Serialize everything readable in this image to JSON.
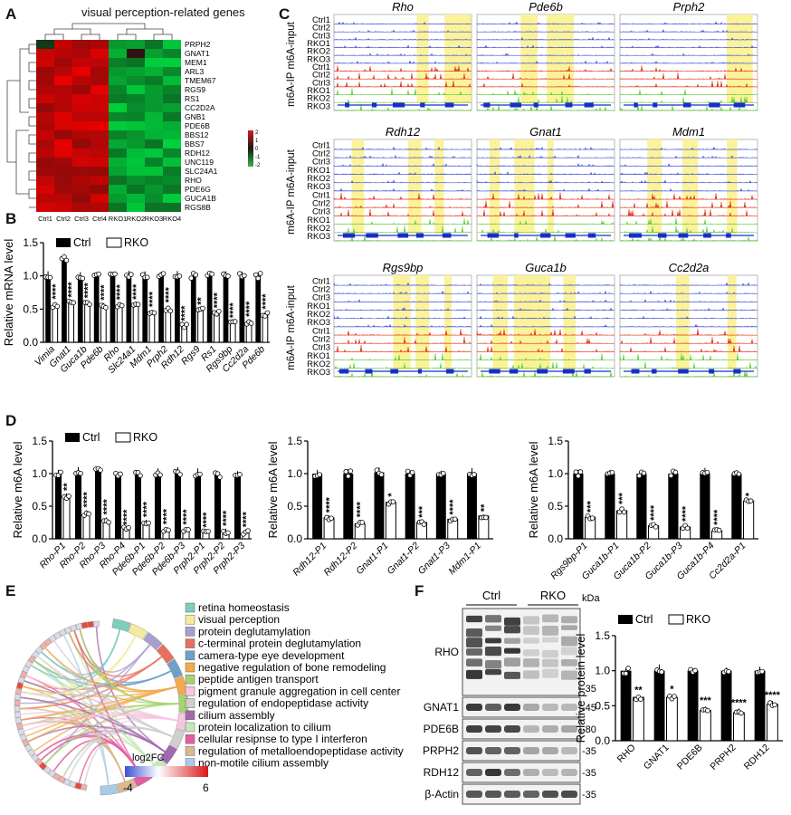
{
  "panels": {
    "A": {
      "label": "A",
      "title": "visual perception-related genes",
      "genes": [
        "PRPH2",
        "GNAT1",
        "MEM1",
        "ARL3",
        "TMEM67",
        "RGS9",
        "RS1",
        "CC2D2A",
        "GNB1",
        "PDE6B",
        "BBS12",
        "BBS7",
        "RDH12",
        "UNC119",
        "SLC24A1",
        "RHO",
        "PDE6G",
        "GUCA1B",
        "RGS8B"
      ],
      "samples": [
        "Ctrl1",
        "Ctrl2",
        "Ctrl3",
        "Ctrl4",
        "RKO1",
        "RKO2",
        "RKO3",
        "RKO4"
      ],
      "scale_ticks": [
        "2",
        "1",
        "0",
        "-1",
        "-2"
      ],
      "colors": {
        "high": "#d7191c",
        "low": "#39b54a",
        "mid": "#1a1a1a"
      }
    },
    "B": {
      "label": "B",
      "legend": [
        "Ctrl",
        "RKO"
      ],
      "ylabel": "Relative mRNA level",
      "yticks": [
        "0.0",
        "0.5",
        "1.0",
        "1.5"
      ],
      "genes": [
        "Vimia",
        "Gnat1",
        "Guca1b",
        "Pde6b",
        "Rho",
        "Slc24a1",
        "Mdm1",
        "Prph2",
        "Rdh12",
        "Rgs9",
        "Rs1",
        "Rgs9bp",
        "Cc2d2a",
        "Pde6b"
      ],
      "sig": [
        "****",
        "****",
        "****",
        "****",
        "****",
        "****",
        "****",
        "****",
        "****",
        "**",
        "****",
        "****",
        "****",
        "****"
      ]
    },
    "C": {
      "label": "C",
      "ylabel": "m6A-IP m6A-input",
      "tracks": [
        "Ctrl1",
        "Ctrl2",
        "Ctrl3",
        "RKO1",
        "RKO2",
        "RKO3",
        "Ctrl1",
        "Ctrl2",
        "Ctrl3",
        "RKO1",
        "RKO2",
        "RKO3"
      ],
      "rows": [
        [
          "Rho",
          "Pde6b",
          "Prph2"
        ],
        [
          "Rdh12",
          "Gnat1",
          "Mdm1"
        ],
        [
          "Rgs9bp",
          "Guca1b",
          "Cc2d2a"
        ]
      ],
      "colors": {
        "input": "#3b4fd6",
        "ctrl_ip": "#e0331a",
        "rko_ip": "#5fd13a",
        "highlight": "#fbf29a"
      }
    },
    "D": {
      "label": "D",
      "legend": [
        "Ctrl",
        "RKO"
      ],
      "ylabel": "Relative m6A level",
      "yticks": [
        "0.0",
        "0.5",
        "1.0",
        "1.5"
      ],
      "plots": [
        {
          "sites": [
            "Rho-P1",
            "Rho-P2",
            "Rho-P3",
            "Rho-P4",
            "Pde6b-P1",
            "Pde6b-P2",
            "Pde6b-P3",
            "Prph2-P1",
            "Prph2-P2",
            "Prph2-P3"
          ],
          "sig": [
            "**",
            "****",
            "****",
            "****",
            "****",
            "****",
            "****",
            "****",
            "****",
            "****"
          ]
        },
        {
          "sites": [
            "Rdh12-P1",
            "Rdh12-P2",
            "Gnat1-P1",
            "Gnat1-P2",
            "Gnat1-P3",
            "Mdm1-P1"
          ],
          "sig": [
            "****",
            "****",
            "*",
            "***",
            "****",
            "**"
          ]
        },
        {
          "sites": [
            "Rgs9bp-P1",
            "Guca1b-P1",
            "Guca1b-P2",
            "Guca1b-P3",
            "Guca1b-P4",
            "Cc2d2a-P1"
          ],
          "sig": [
            "***",
            "***",
            "****",
            "****",
            "****",
            "*"
          ]
        }
      ]
    },
    "E": {
      "label": "E",
      "terms": [
        {
          "name": "retina homeostasis",
          "color": "#7fcdbb"
        },
        {
          "name": "visual perception",
          "color": "#f6eb9c"
        },
        {
          "name": "protein deglutamylation",
          "color": "#a99fcf"
        },
        {
          "name": "c-terminal protein deglutamylation",
          "color": "#e8705f"
        },
        {
          "name": "camera-type eye development",
          "color": "#6fa0c8"
        },
        {
          "name": "negative regulation of bone remodeling",
          "color": "#f4a94e"
        },
        {
          "name": "peptide antigen transport",
          "color": "#a7d36f"
        },
        {
          "name": "pigment granule aggregation in cell center",
          "color": "#f7c6de"
        },
        {
          "name": "regulation of endopeptidase activity",
          "color": "#cfcfcf"
        },
        {
          "name": "cilium assembly",
          "color": "#a268ad"
        },
        {
          "name": "protein localization to cilium",
          "color": "#c6e9b8"
        },
        {
          "name": "cellular resipnse to type I interferon",
          "color": "#e65ca0"
        },
        {
          "name": "regulation of metalloendopeptidase activity",
          "color": "#d9b98f"
        },
        {
          "name": "non-motile cilium assembly",
          "color": "#a9cbe6"
        }
      ],
      "scale_title": "log2FC",
      "scale_min": "-4",
      "scale_max": "6"
    },
    "F": {
      "label": "F",
      "groups": [
        "Ctrl",
        "RKO"
      ],
      "kda": "kDa",
      "blots": [
        {
          "name": "RHO",
          "mw": "-35"
        },
        {
          "name": "GNAT1",
          "mw": "-45"
        },
        {
          "name": "PDE6B",
          "mw": "-80"
        },
        {
          "name": "PRPH2",
          "mw": "-35"
        },
        {
          "name": "RDH12",
          "mw": "-35"
        },
        {
          "name": "β-Actin",
          "mw": "-35"
        }
      ],
      "legend": [
        "Ctrl",
        "RKO"
      ],
      "ylabel": "Relative protein level",
      "yticks": [
        "0.0",
        "0.5",
        "1.0",
        "1.5"
      ]
    }
  },
  "chart_data": [
    {
      "type": "bar",
      "panel": "B",
      "categories": [
        "Vimia",
        "Gnat1",
        "Guca1b",
        "Pde6b",
        "Rho",
        "Slc24a1",
        "Mdm1",
        "Prph2",
        "Rdh12",
        "Rgs9",
        "Rs1",
        "Rgs9bp",
        "Cc2d2a",
        "Pde6b"
      ],
      "series": [
        {
          "name": "Ctrl",
          "values": [
            1.0,
            1.25,
            1.0,
            1.0,
            1.0,
            1.0,
            1.0,
            1.0,
            1.0,
            1.0,
            1.0,
            1.0,
            1.0,
            1.0
          ]
        },
        {
          "name": "RKO",
          "values": [
            0.55,
            0.6,
            0.58,
            0.55,
            0.56,
            0.55,
            0.45,
            0.5,
            0.25,
            0.5,
            0.45,
            0.3,
            0.3,
            0.42
          ]
        }
      ],
      "ylabel": "Relative mRNA level",
      "ylim": [
        0,
        1.5
      ]
    },
    {
      "type": "bar",
      "panel": "D1",
      "categories": [
        "Rho-P1",
        "Rho-P2",
        "Rho-P3",
        "Rho-P4",
        "Pde6b-P1",
        "Pde6b-P2",
        "Pde6b-P3",
        "Prph2-P1",
        "Prph2-P2",
        "Prph2-P3"
      ],
      "series": [
        {
          "name": "Ctrl",
          "values": [
            1.0,
            1.02,
            1.05,
            0.98,
            0.98,
            1.0,
            1.02,
            1.0,
            0.98,
            1.0
          ]
        },
        {
          "name": "RKO",
          "values": [
            0.65,
            0.38,
            0.28,
            0.15,
            0.25,
            0.12,
            0.12,
            0.1,
            0.1,
            0.1
          ]
        }
      ],
      "ylabel": "Relative m6A level",
      "ylim": [
        0,
        1.5
      ]
    },
    {
      "type": "bar",
      "panel": "D2",
      "categories": [
        "Rdh12-P1",
        "Rdh12-P2",
        "Gnat1-P1",
        "Gnat1-P2",
        "Gnat1-P3",
        "Mdm1-P1"
      ],
      "series": [
        {
          "name": "Ctrl",
          "values": [
            1.0,
            1.0,
            1.02,
            1.0,
            1.0,
            1.0
          ]
        },
        {
          "name": "RKO",
          "values": [
            0.32,
            0.23,
            0.56,
            0.25,
            0.3,
            0.35
          ]
        }
      ],
      "ylabel": "Relative m6A level",
      "ylim": [
        0,
        1.5
      ]
    },
    {
      "type": "bar",
      "panel": "D3",
      "categories": [
        "Rgs9bp-P1",
        "Guca1b-P1",
        "Guca1b-P2",
        "Guca1b-P3",
        "Guca1b-P4",
        "Cc2d2a-P1"
      ],
      "series": [
        {
          "name": "Ctrl",
          "values": [
            1.0,
            1.0,
            1.0,
            1.0,
            1.0,
            1.0
          ]
        },
        {
          "name": "RKO",
          "values": [
            0.33,
            0.43,
            0.2,
            0.18,
            0.12,
            0.58
          ]
        }
      ],
      "ylabel": "Relative m6A level",
      "ylim": [
        0,
        1.5
      ]
    },
    {
      "type": "bar",
      "panel": "F",
      "categories": [
        "RHO",
        "GNAT1",
        "PDE6B",
        "PRPH2",
        "RDH12"
      ],
      "series": [
        {
          "name": "Ctrl",
          "values": [
            1.0,
            1.0,
            1.0,
            1.0,
            1.0
          ]
        },
        {
          "name": "RKO",
          "values": [
            0.62,
            0.62,
            0.43,
            0.4,
            0.52
          ]
        }
      ],
      "sig": [
        "**",
        "*",
        "***",
        "****",
        "****"
      ],
      "ylabel": "Relative protein level",
      "ylim": [
        0,
        1.5
      ]
    }
  ]
}
